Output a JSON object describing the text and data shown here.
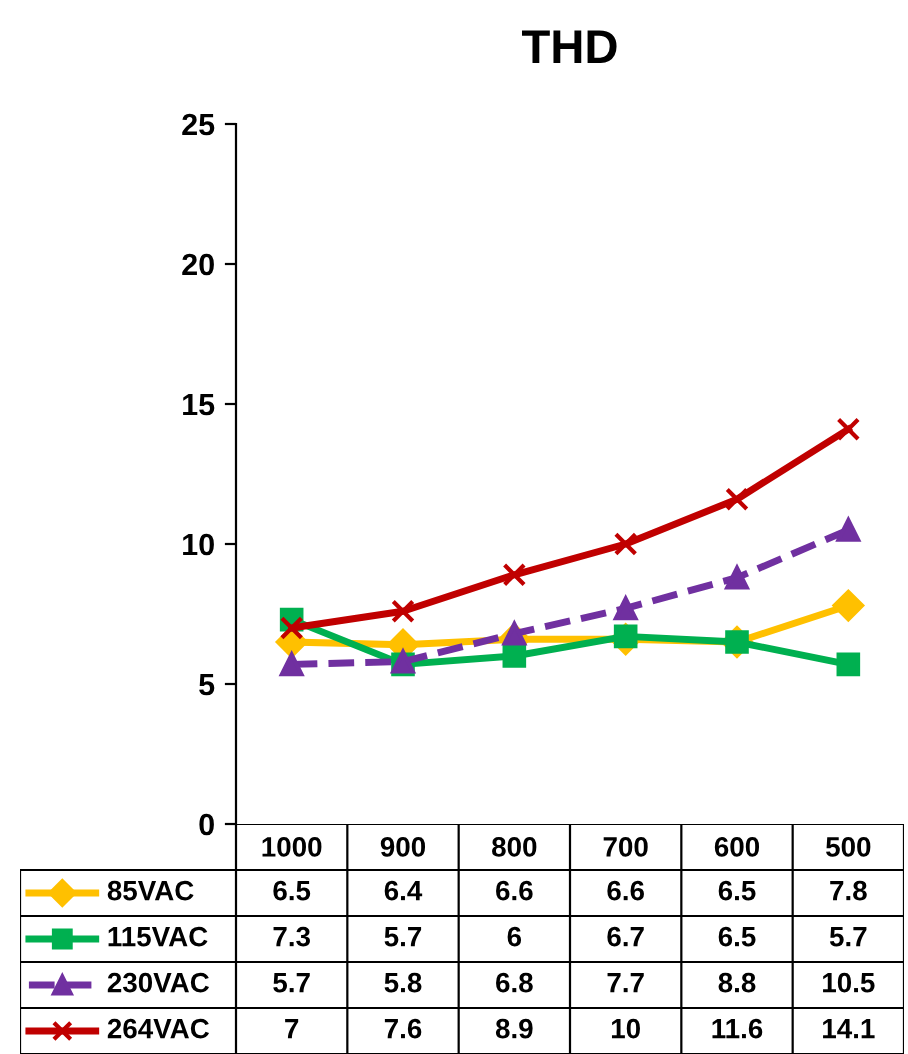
{
  "chart_data": {
    "type": "line",
    "title": "THD",
    "categories": [
      "1000",
      "900",
      "800",
      "700",
      "600",
      "500"
    ],
    "series": [
      {
        "name": "85VAC",
        "color": "#ffc000",
        "marker": "diamond",
        "line_style": "solid",
        "values": [
          6.5,
          6.4,
          6.6,
          6.6,
          6.5,
          7.8
        ]
      },
      {
        "name": "115VAC",
        "color": "#00b050",
        "marker": "square",
        "line_style": "solid",
        "values": [
          7.3,
          5.7,
          6,
          6.7,
          6.5,
          5.7
        ]
      },
      {
        "name": "230VAC",
        "color": "#7030a0",
        "marker": "triangle",
        "line_style": "dashed",
        "values": [
          5.7,
          5.8,
          6.8,
          7.7,
          8.8,
          10.5
        ]
      },
      {
        "name": "264VAC",
        "color": "#c00000",
        "marker": "cross",
        "line_style": "solid",
        "values": [
          7,
          7.6,
          8.9,
          10,
          11.6,
          14.1
        ]
      }
    ],
    "ylim": [
      0,
      25
    ],
    "yticks": [
      0,
      5,
      10,
      15,
      20,
      25
    ],
    "grid": false,
    "data_labels": true,
    "legend": "bottom"
  }
}
